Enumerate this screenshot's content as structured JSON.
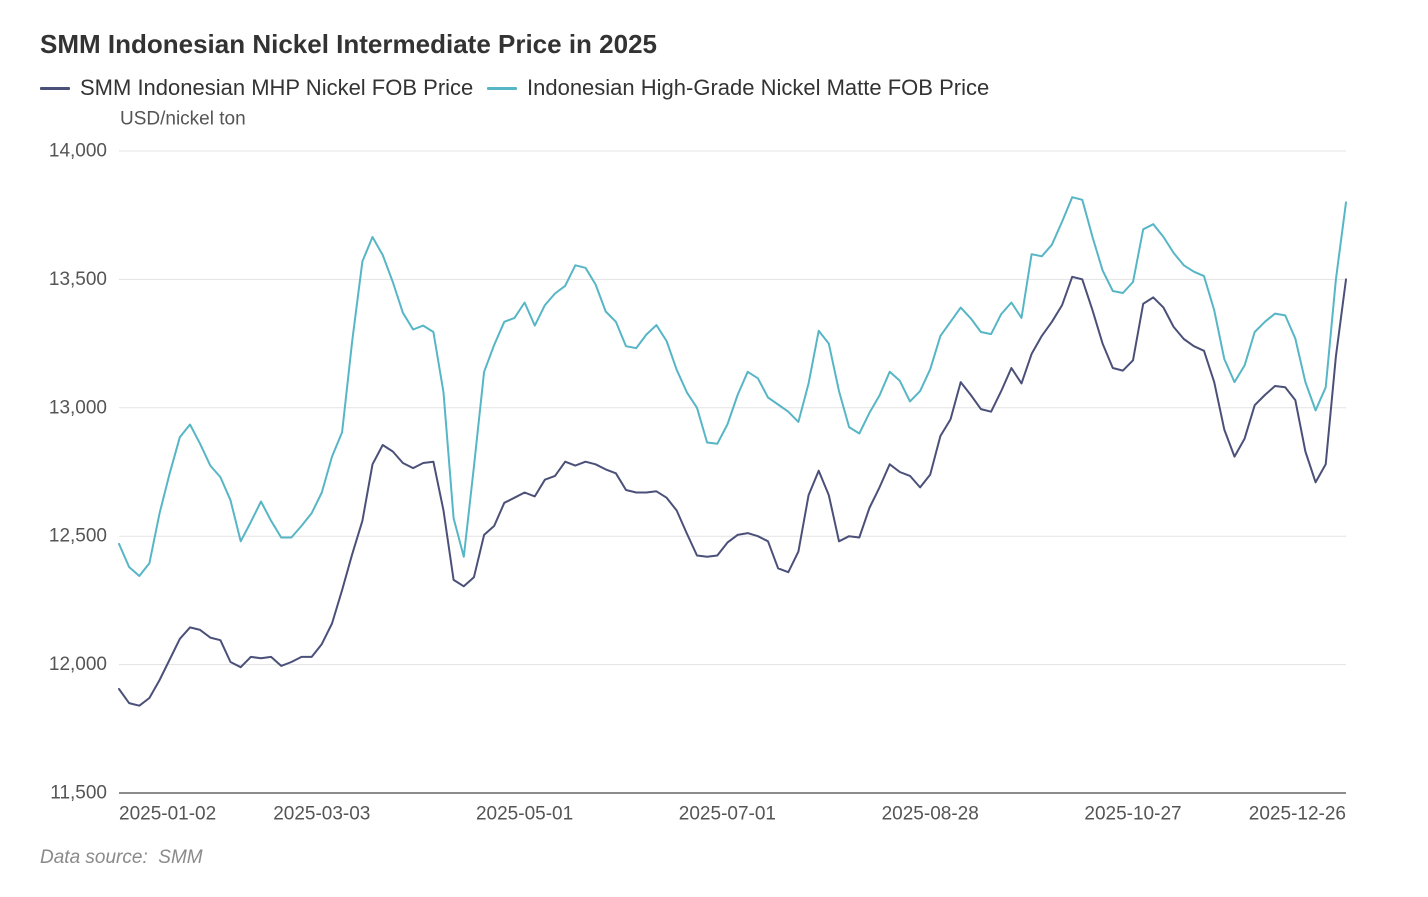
{
  "chart_data": {
    "type": "line",
    "title": "SMM Indonesian Nickel Intermediate Price in 2025",
    "xlabel": "",
    "ylabel": "USD/nickel ton",
    "ylim": [
      11500,
      14000
    ],
    "y_ticks": [
      11500,
      12000,
      12500,
      13000,
      13500,
      14000
    ],
    "y_tick_labels": [
      "11,500",
      "12,000",
      "12,500",
      "13,000",
      "13,500",
      "14,000"
    ],
    "xlim": [
      0,
      242
    ],
    "x_step": 2,
    "x_ticks": [
      {
        "index": 0,
        "label": "2025-01-02"
      },
      {
        "index": 40,
        "label": "2025-03-03"
      },
      {
        "index": 80,
        "label": "2025-05-01"
      },
      {
        "index": 120,
        "label": "2025-07-01"
      },
      {
        "index": 160,
        "label": "2025-08-28"
      },
      {
        "index": 200,
        "label": "2025-10-27"
      },
      {
        "index": 242,
        "label": "2025-12-26"
      }
    ],
    "grid": true,
    "legend_position": "top-left",
    "series": [
      {
        "name": "SMM Indonesian MHP Nickel FOB Price",
        "color": "#4b5079",
        "values": [
          11905,
          11850,
          11840,
          11870,
          11940,
          12020,
          12100,
          12145,
          12135,
          12105,
          12095,
          12010,
          11990,
          12030,
          12025,
          12030,
          11995,
          12010,
          12030,
          12030,
          12080,
          12160,
          12290,
          12430,
          12560,
          12780,
          12855,
          12830,
          12785,
          12765,
          12785,
          12790,
          12600,
          12330,
          12305,
          12340,
          12505,
          12540,
          12630,
          12650,
          12670,
          12655,
          12720,
          12735,
          12790,
          12775,
          12790,
          12780,
          12760,
          12745,
          12680,
          12670,
          12670,
          12675,
          12650,
          12600,
          12510,
          12425,
          12420,
          12425,
          12475,
          12505,
          12512,
          12500,
          12480,
          12375,
          12360,
          12440,
          12660,
          12755,
          12660,
          12480,
          12500,
          12495,
          12610,
          12690,
          12780,
          12750,
          12735,
          12690,
          12740,
          12890,
          12955,
          13100,
          13050,
          12995,
          12985,
          13065,
          13155,
          13095,
          13210,
          13280,
          13335,
          13400,
          13510,
          13500,
          13380,
          13250,
          13155,
          13145,
          13185,
          13405,
          13430,
          13390,
          13315,
          13268,
          13240,
          13222,
          13100,
          12915,
          12810,
          12880,
          13010,
          13050,
          13085,
          13080,
          13030,
          12830,
          12710,
          12780,
          13200,
          13500
        ]
      },
      {
        "name": "Indonesian High-Grade Nickel Matte FOB Price",
        "color": "#57b6c6",
        "values": [
          12470,
          12380,
          12345,
          12395,
          12590,
          12745,
          12885,
          12935,
          12860,
          12775,
          12730,
          12640,
          12480,
          12555,
          12635,
          12560,
          12495,
          12495,
          12540,
          12590,
          12670,
          12810,
          12905,
          13260,
          13570,
          13665,
          13595,
          13490,
          13370,
          13305,
          13320,
          13295,
          13060,
          12570,
          12420,
          12770,
          13140,
          13245,
          13335,
          13350,
          13410,
          13320,
          13400,
          13445,
          13475,
          13555,
          13545,
          13480,
          13375,
          13335,
          13240,
          13232,
          13285,
          13322,
          13260,
          13148,
          13060,
          13000,
          12865,
          12860,
          12935,
          13050,
          13140,
          13115,
          13040,
          13013,
          12985,
          12945,
          13095,
          13300,
          13250,
          13065,
          12925,
          12900,
          12980,
          13048,
          13140,
          13105,
          13025,
          13065,
          13150,
          13280,
          13335,
          13390,
          13348,
          13295,
          13287,
          13365,
          13410,
          13350,
          13598,
          13590,
          13635,
          13725,
          13820,
          13810,
          13665,
          13535,
          13455,
          13447,
          13490,
          13695,
          13715,
          13665,
          13603,
          13555,
          13530,
          13513,
          13380,
          13190,
          13100,
          13165,
          13295,
          13335,
          13367,
          13360,
          13270,
          13100,
          12990,
          13080,
          13500,
          13800
        ]
      }
    ]
  },
  "source_note": "Data source:  SMM"
}
